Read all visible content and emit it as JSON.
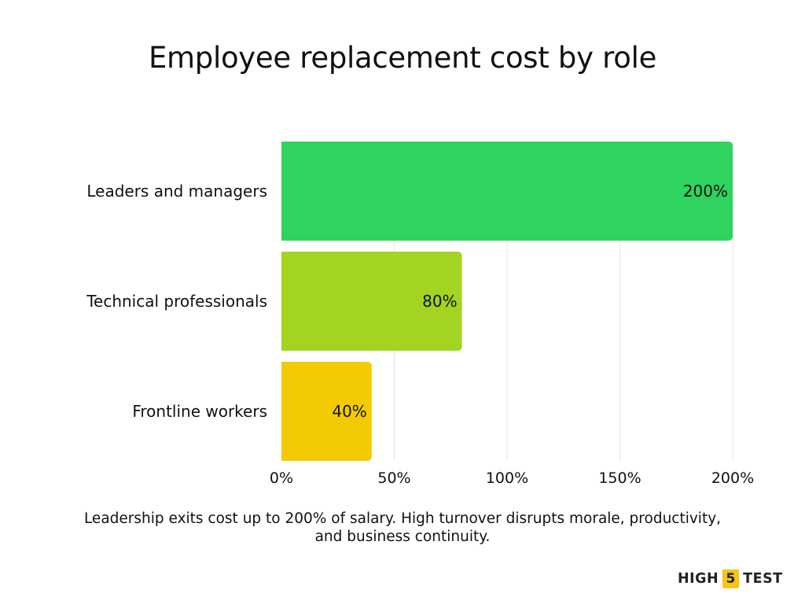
{
  "chart_data": {
    "type": "bar",
    "orientation": "horizontal",
    "title": "Employee replacement cost by role",
    "categories": [
      "Leaders and managers",
      "Technical professionals",
      "Frontline workers"
    ],
    "values": [
      200,
      80,
      40
    ],
    "value_labels": [
      "200%",
      "80%",
      "40%"
    ],
    "colors": [
      "#2fd35f",
      "#a4d422",
      "#f2cb05"
    ],
    "xlim": [
      0,
      200
    ],
    "x_ticks": [
      0,
      50,
      100,
      150,
      200
    ],
    "x_tick_labels": [
      "0%",
      "50%",
      "100%",
      "150%",
      "200%"
    ],
    "grid": "vertical",
    "grid_color": "#e6e6e6"
  },
  "caption": "Leadership exits cost up to 200% of salary. High turnover disrupts morale, productivity, and business continuity.",
  "brand": {
    "left": "HIGH",
    "badge": "5",
    "right": "TEST"
  }
}
